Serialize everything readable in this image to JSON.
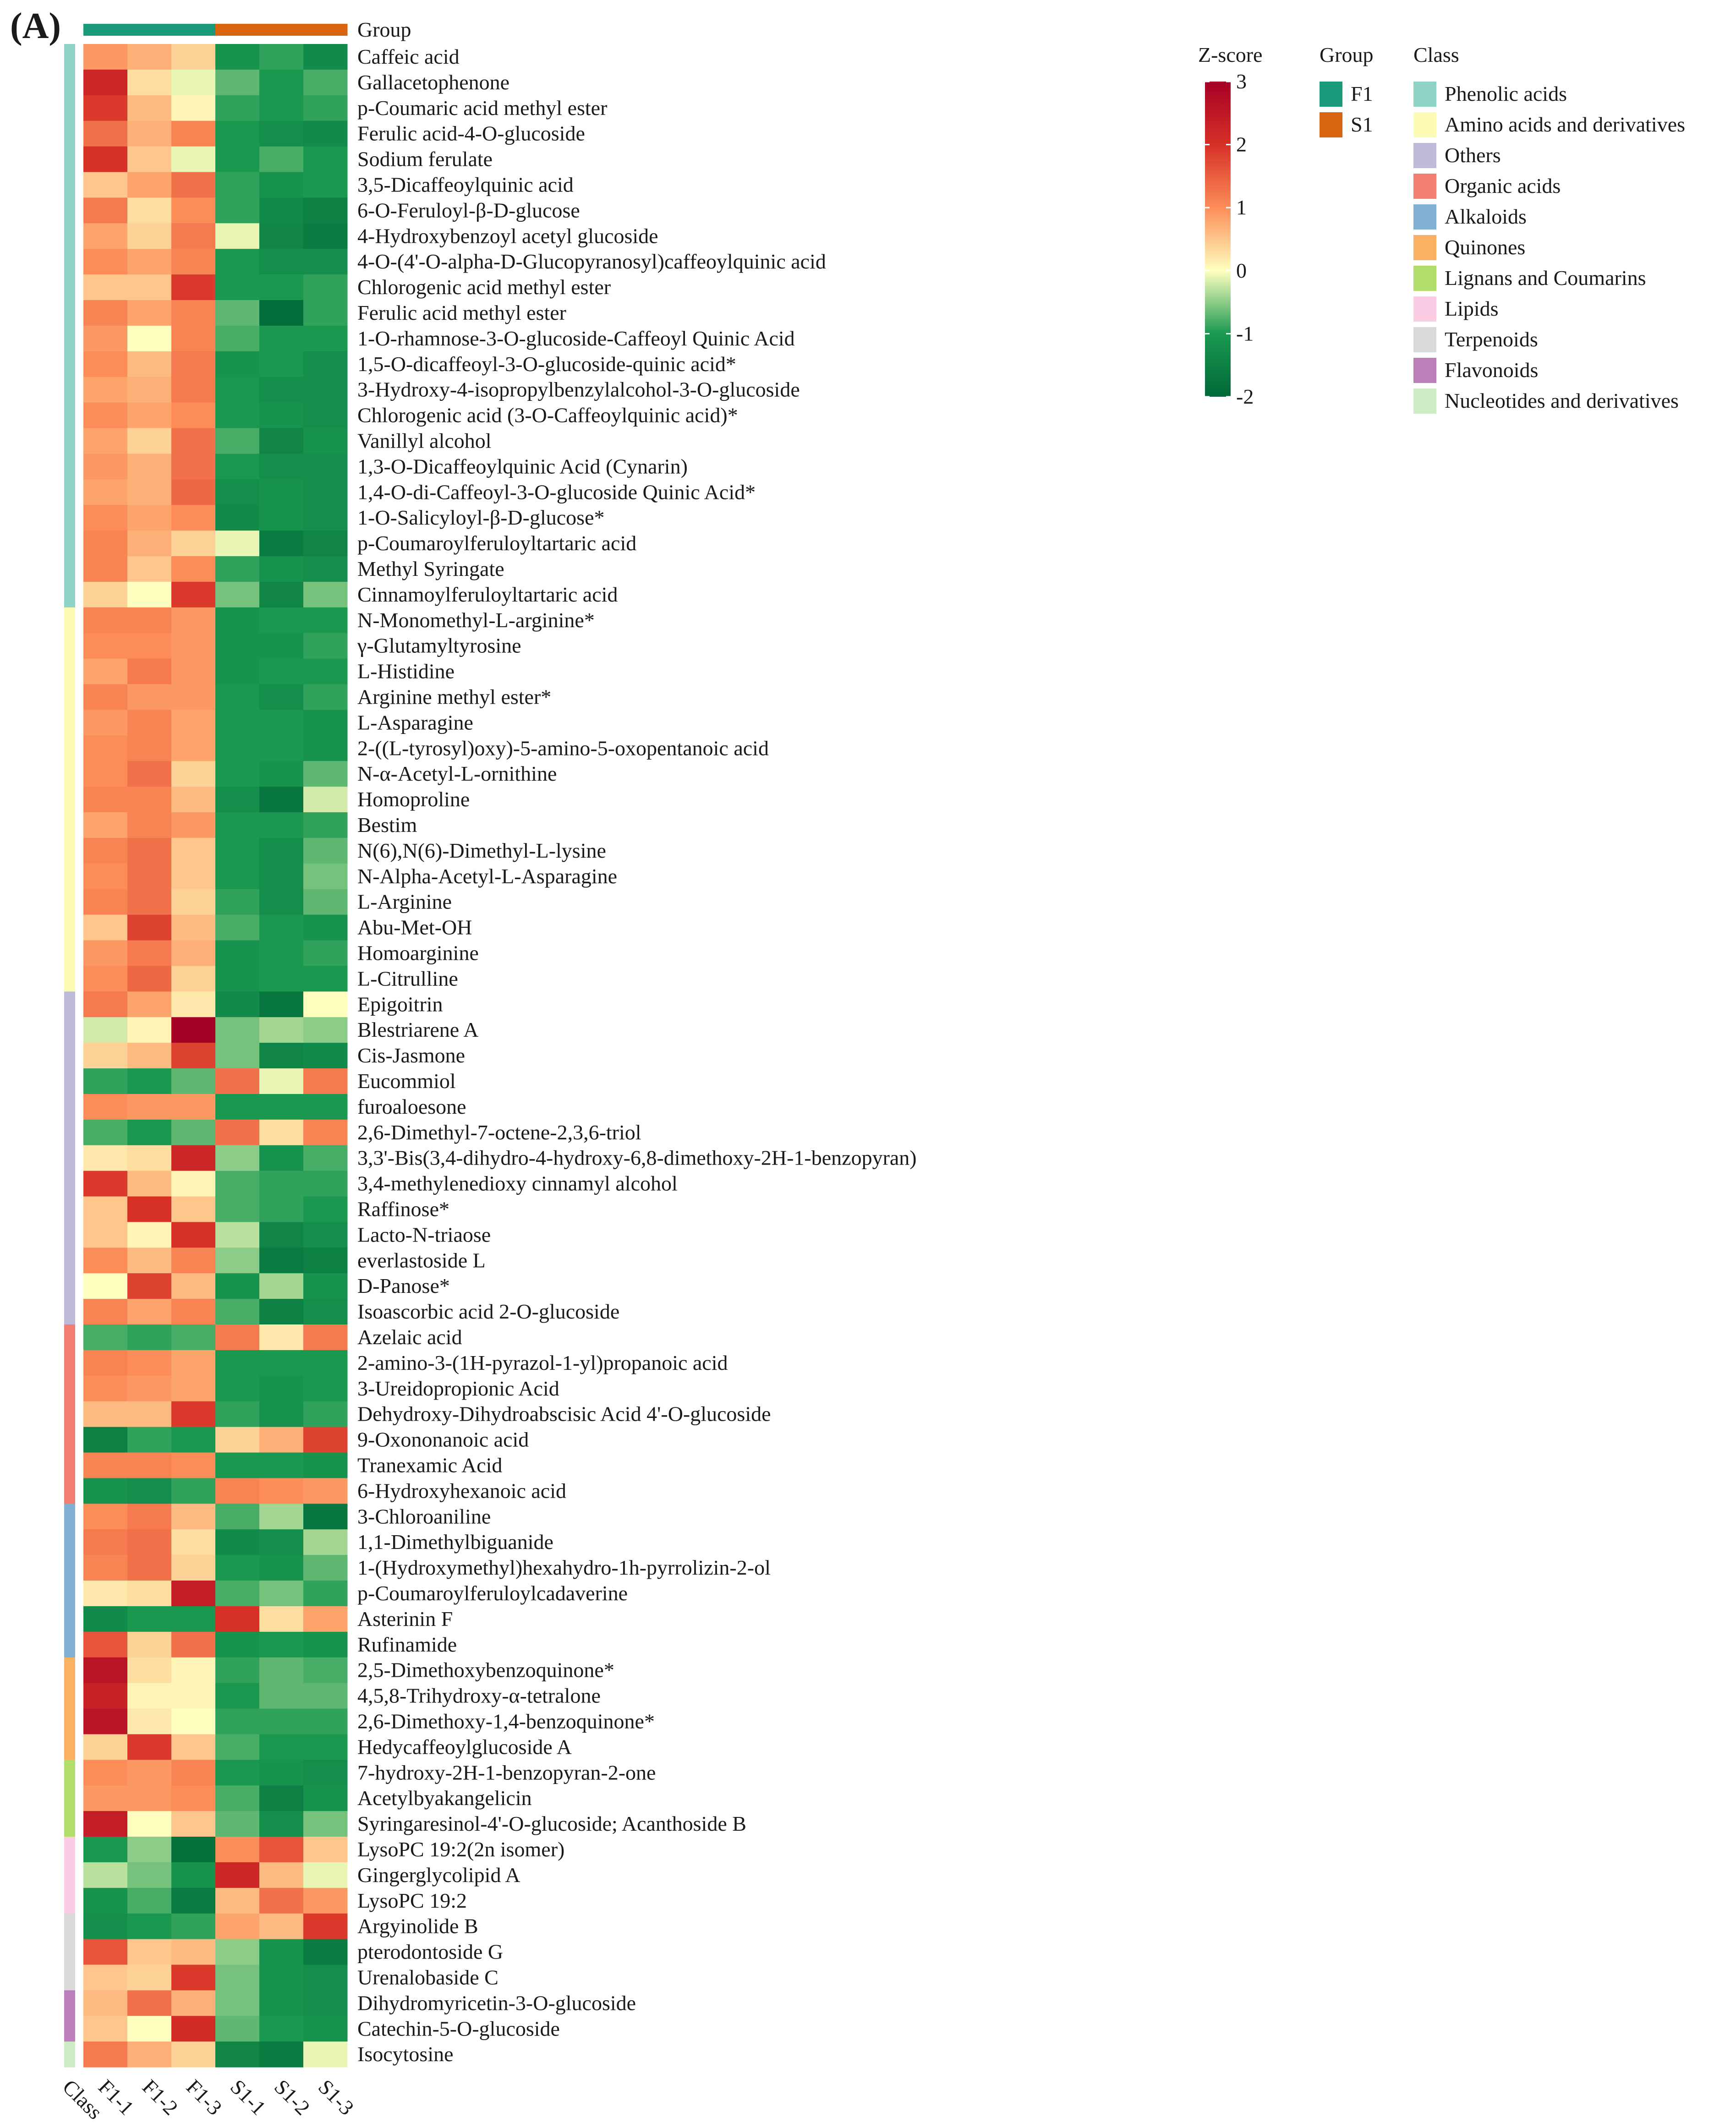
{
  "panel_label": "(A)",
  "colors": {
    "group": {
      "F1": "#1a9a7a",
      "S1": "#d9640f"
    },
    "class": {
      "Phenolic acids": "#8fd3c7",
      "Amino acids and derivatives": "#fbfbb3",
      "Others": "#bebad9",
      "Organic acids": "#f47f71",
      "Alkaloids": "#80b1d3",
      "Quinones": "#fbb163",
      "Lignans and Coumarins": "#b3dd6b",
      "Lipids": "#fbcce4",
      "Terpenoids": "#d9d9d9",
      "Flavonoids": "#bb7fbc",
      "Nucleotides and derivatives": "#cdebc5"
    }
  },
  "chart_data": {
    "type": "heatmap",
    "title": "",
    "samples": [
      "F1-1",
      "F1-2",
      "F1-3",
      "S1-1",
      "S1-2",
      "S1-3"
    ],
    "sample_groups": [
      "F1",
      "F1",
      "F1",
      "S1",
      "S1",
      "S1"
    ],
    "annotation_row_label": "Group",
    "annotation_col_label": "Class",
    "zscore_range": [
      -2,
      3
    ],
    "zscore_ticks": [
      3,
      2,
      1,
      0,
      -1,
      -2
    ],
    "rows": [
      {
        "name": "Caffeic acid",
        "class": "Phenolic acids",
        "values": [
          0.9,
          0.7,
          0.4,
          -1.1,
          -0.9,
          -1.3
        ]
      },
      {
        "name": "Gallacetophenone",
        "class": "Phenolic acids",
        "values": [
          2.2,
          0.3,
          -0.1,
          -0.7,
          -1.0,
          -0.8
        ]
      },
      {
        "name": "p-Coumaric acid methyl ester",
        "class": "Phenolic acids",
        "values": [
          1.9,
          0.6,
          0.1,
          -0.9,
          -1.0,
          -0.9
        ]
      },
      {
        "name": "Ferulic acid-4-O-glucoside",
        "class": "Phenolic acids",
        "values": [
          1.3,
          0.7,
          1.1,
          -1.0,
          -1.2,
          -1.3
        ]
      },
      {
        "name": "Sodium ferulate",
        "class": "Phenolic acids",
        "values": [
          2.0,
          0.5,
          -0.1,
          -1.0,
          -0.8,
          -1.0
        ]
      },
      {
        "name": "3,5-Dicaffeoylquinic acid",
        "class": "Phenolic acids",
        "values": [
          0.5,
          0.8,
          1.3,
          -0.9,
          -1.1,
          -1.0
        ]
      },
      {
        "name": "6-O-Feruloyl-β-D-glucose",
        "class": "Phenolic acids",
        "values": [
          1.2,
          0.3,
          1.0,
          -0.9,
          -1.3,
          -1.5
        ]
      },
      {
        "name": "4-Hydroxybenzoyl acetyl glucoside",
        "class": "Phenolic acids",
        "values": [
          0.8,
          0.4,
          1.2,
          -0.1,
          -1.4,
          -1.6
        ]
      },
      {
        "name": "4-O-(4'-O-alpha-D-Glucopyranosyl)caffeoylquinic acid",
        "class": "Phenolic acids",
        "values": [
          1.0,
          0.8,
          1.1,
          -1.0,
          -1.2,
          -1.2
        ]
      },
      {
        "name": "Chlorogenic acid methyl ester",
        "class": "Phenolic acids",
        "values": [
          0.5,
          0.5,
          1.9,
          -1.0,
          -1.0,
          -0.9
        ]
      },
      {
        "name": "Ferulic acid methyl ester",
        "class": "Phenolic acids",
        "values": [
          1.1,
          0.8,
          1.1,
          -0.7,
          -1.9,
          -0.9
        ]
      },
      {
        "name": "1-O-rhamnose-3-O-glucoside-Caffeoyl Quinic Acid",
        "class": "Phenolic acids",
        "values": [
          0.9,
          0.0,
          1.1,
          -0.8,
          -1.0,
          -1.0
        ]
      },
      {
        "name": "1,5-O-dicaffeoyl-3-O-glucoside-quinic acid*",
        "class": "Phenolic acids",
        "values": [
          1.0,
          0.6,
          1.2,
          -1.1,
          -1.0,
          -1.2
        ]
      },
      {
        "name": "3-Hydroxy-4-isopropylbenzylalcohol-3-O-glucoside",
        "class": "Phenolic acids",
        "values": [
          0.8,
          0.7,
          1.2,
          -1.0,
          -1.2,
          -1.2
        ]
      },
      {
        "name": "Chlorogenic acid (3-O-Caffeoylquinic acid)*",
        "class": "Phenolic acids",
        "values": [
          1.0,
          0.8,
          1.0,
          -1.0,
          -1.1,
          -1.2
        ]
      },
      {
        "name": "Vanillyl alcohol",
        "class": "Phenolic acids",
        "values": [
          0.8,
          0.4,
          1.3,
          -0.8,
          -1.4,
          -1.1
        ]
      },
      {
        "name": "1,3-O-Dicaffeoylquinic Acid (Cynarin)",
        "class": "Phenolic acids",
        "values": [
          0.9,
          0.7,
          1.3,
          -1.0,
          -1.2,
          -1.2
        ]
      },
      {
        "name": "1,4-O-di-Caffeoyl-3-O-glucoside Quinic Acid*",
        "class": "Phenolic acids",
        "values": [
          0.8,
          0.7,
          1.4,
          -1.2,
          -1.1,
          -1.2
        ]
      },
      {
        "name": "1-O-Salicyloyl-β-D-glucose*",
        "class": "Phenolic acids",
        "values": [
          1.0,
          0.8,
          1.0,
          -1.3,
          -1.1,
          -1.2
        ]
      },
      {
        "name": "p-Coumaroylferuloyltartaric acid",
        "class": "Phenolic acids",
        "values": [
          1.1,
          0.7,
          0.4,
          -0.1,
          -1.6,
          -1.4
        ]
      },
      {
        "name": "Methyl Syringate",
        "class": "Phenolic acids",
        "values": [
          1.1,
          0.5,
          1.0,
          -0.9,
          -1.1,
          -1.2
        ]
      },
      {
        "name": "Cinnamoylferuloyltartaric acid",
        "class": "Phenolic acids",
        "values": [
          0.4,
          0.0,
          1.9,
          -0.6,
          -1.4,
          -0.6
        ]
      },
      {
        "name": "N-Monomethyl-L-arginine*",
        "class": "Amino acids and derivatives",
        "values": [
          1.1,
          1.1,
          0.9,
          -1.1,
          -1.0,
          -1.0
        ]
      },
      {
        "name": "γ-Glutamyltyrosine",
        "class": "Amino acids and derivatives",
        "values": [
          1.0,
          1.0,
          0.9,
          -1.1,
          -1.1,
          -0.9
        ]
      },
      {
        "name": "L-Histidine",
        "class": "Amino acids and derivatives",
        "values": [
          0.8,
          1.2,
          0.9,
          -1.1,
          -1.0,
          -1.0
        ]
      },
      {
        "name": "Arginine methyl ester*",
        "class": "Amino acids and derivatives",
        "values": [
          1.1,
          0.9,
          0.9,
          -1.0,
          -1.2,
          -0.9
        ]
      },
      {
        "name": "L-Asparagine",
        "class": "Amino acids and derivatives",
        "values": [
          0.9,
          1.1,
          0.8,
          -1.0,
          -1.0,
          -1.1
        ]
      },
      {
        "name": "2-((L-tyrosyl)oxy)-5-amino-5-oxopentanoic acid",
        "class": "Amino acids and derivatives",
        "values": [
          1.0,
          1.1,
          0.8,
          -1.0,
          -1.0,
          -1.1
        ]
      },
      {
        "name": "N-α-Acetyl-L-ornithine",
        "class": "Amino acids and derivatives",
        "values": [
          1.0,
          1.3,
          0.4,
          -1.0,
          -1.1,
          -0.7
        ]
      },
      {
        "name": "Homoproline",
        "class": "Amino acids and derivatives",
        "values": [
          1.1,
          1.1,
          0.6,
          -1.2,
          -1.7,
          -0.2
        ]
      },
      {
        "name": "Bestim",
        "class": "Amino acids and derivatives",
        "values": [
          0.8,
          1.1,
          0.9,
          -1.0,
          -1.0,
          -0.9
        ]
      },
      {
        "name": "N(6),N(6)-Dimethyl-L-lysine",
        "class": "Amino acids and derivatives",
        "values": [
          1.1,
          1.3,
          0.5,
          -1.0,
          -1.2,
          -0.7
        ]
      },
      {
        "name": "N-Alpha-Acetyl-L-Asparagine",
        "class": "Amino acids and derivatives",
        "values": [
          1.0,
          1.3,
          0.5,
          -1.0,
          -1.2,
          -0.6
        ]
      },
      {
        "name": "L-Arginine",
        "class": "Amino acids and derivatives",
        "values": [
          1.1,
          1.3,
          0.4,
          -0.9,
          -1.2,
          -0.7
        ]
      },
      {
        "name": "Abu-Met-OH",
        "class": "Amino acids and derivatives",
        "values": [
          0.5,
          1.8,
          0.6,
          -0.8,
          -1.0,
          -1.1
        ]
      },
      {
        "name": "Homoarginine",
        "class": "Amino acids and derivatives",
        "values": [
          0.9,
          1.2,
          0.7,
          -1.1,
          -1.0,
          -0.9
        ]
      },
      {
        "name": "L-Citrulline",
        "class": "Amino acids and derivatives",
        "values": [
          1.0,
          1.4,
          0.4,
          -1.1,
          -1.0,
          -1.0
        ]
      },
      {
        "name": "Epigoitrin",
        "class": "Others",
        "values": [
          1.2,
          0.8,
          0.2,
          -1.3,
          -1.7,
          0.0
        ]
      },
      {
        "name": "Blestriarene A",
        "class": "Others",
        "values": [
          -0.2,
          0.1,
          3.0,
          -0.6,
          -0.4,
          -0.5
        ]
      },
      {
        "name": "Cis-Jasmone",
        "class": "Others",
        "values": [
          0.4,
          0.6,
          1.8,
          -0.6,
          -1.4,
          -1.3
        ]
      },
      {
        "name": "Eucommiol",
        "class": "Others",
        "values": [
          -0.9,
          -1.0,
          -0.7,
          1.3,
          -0.1,
          1.2
        ]
      },
      {
        "name": "furoaloesone",
        "class": "Others",
        "values": [
          1.0,
          0.9,
          0.9,
          -1.0,
          -1.0,
          -1.0
        ]
      },
      {
        "name": "2,6-Dimethyl-7-octene-2,3,6-triol",
        "class": "Others",
        "values": [
          -0.8,
          -1.0,
          -0.7,
          1.3,
          0.3,
          1.1
        ]
      },
      {
        "name": "3,3'-Bis(3,4-dihydro-4-hydroxy-6,8-dimethoxy-2H-1-benzopyran)",
        "class": "Others",
        "values": [
          0.2,
          0.3,
          2.2,
          -0.5,
          -1.1,
          -0.8
        ]
      },
      {
        "name": "3,4-methylenedioxy cinnamyl alcohol",
        "class": "Others",
        "values": [
          1.9,
          0.6,
          0.1,
          -0.8,
          -0.9,
          -0.9
        ]
      },
      {
        "name": "Raffinose*",
        "class": "Others",
        "values": [
          0.5,
          2.0,
          0.5,
          -0.8,
          -0.9,
          -1.0
        ]
      },
      {
        "name": "Lacto-N-triaose",
        "class": "Others",
        "values": [
          0.5,
          0.1,
          2.0,
          -0.3,
          -1.4,
          -1.2
        ]
      },
      {
        "name": "everlastoside L",
        "class": "Others",
        "values": [
          1.0,
          0.6,
          1.1,
          -0.5,
          -1.6,
          -1.5
        ]
      },
      {
        "name": "D-Panose*",
        "class": "Others",
        "values": [
          0.0,
          1.8,
          0.6,
          -1.1,
          -0.4,
          -1.1
        ]
      },
      {
        "name": "Isoascorbic acid 2-O-glucoside",
        "class": "Others",
        "values": [
          1.1,
          0.8,
          1.1,
          -0.8,
          -1.5,
          -1.2
        ]
      },
      {
        "name": "Azelaic acid",
        "class": "Organic acids",
        "values": [
          -0.8,
          -0.9,
          -0.8,
          1.2,
          0.2,
          1.2
        ]
      },
      {
        "name": "2-amino-3-(1H-pyrazol-1-yl)propanoic acid",
        "class": "Organic acids",
        "values": [
          1.1,
          1.0,
          0.8,
          -1.0,
          -1.0,
          -1.0
        ]
      },
      {
        "name": "3-Ureidopropionic Acid",
        "class": "Organic acids",
        "values": [
          1.0,
          0.9,
          0.8,
          -1.0,
          -1.1,
          -1.0
        ]
      },
      {
        "name": "Dehydroxy-Dihydroabscisic Acid 4'-O-glucoside",
        "class": "Organic acids",
        "values": [
          0.6,
          0.6,
          1.9,
          -0.9,
          -1.1,
          -0.9
        ]
      },
      {
        "name": "9-Oxononanoic acid",
        "class": "Organic acids",
        "values": [
          -1.5,
          -0.9,
          -1.0,
          0.4,
          0.7,
          1.8
        ]
      },
      {
        "name": "Tranexamic Acid",
        "class": "Organic acids",
        "values": [
          1.1,
          1.1,
          1.0,
          -1.0,
          -1.0,
          -1.1
        ]
      },
      {
        "name": "6-Hydroxyhexanoic acid",
        "class": "Organic acids",
        "values": [
          -1.1,
          -1.2,
          -0.9,
          1.1,
          1.0,
          0.9
        ]
      },
      {
        "name": "3-Chloroaniline",
        "class": "Alkaloids",
        "values": [
          1.0,
          1.2,
          0.6,
          -0.8,
          -0.4,
          -1.7
        ]
      },
      {
        "name": "1,1-Dimethylbiguanide",
        "class": "Alkaloids",
        "values": [
          1.2,
          1.3,
          0.3,
          -1.3,
          -1.2,
          -0.4
        ]
      },
      {
        "name": "1-(Hydroxymethyl)hexahydro-1h-pyrrolizin-2-ol",
        "class": "Alkaloids",
        "values": [
          1.1,
          1.3,
          0.4,
          -1.0,
          -1.1,
          -0.7
        ]
      },
      {
        "name": "p-Coumaroylferuloylcadaverine",
        "class": "Alkaloids",
        "values": [
          0.2,
          0.3,
          2.4,
          -0.8,
          -0.6,
          -0.9
        ]
      },
      {
        "name": "Asterinin F",
        "class": "Alkaloids",
        "values": [
          -1.3,
          -1.0,
          -1.0,
          2.0,
          0.3,
          0.8
        ]
      },
      {
        "name": "Rufinamide",
        "class": "Alkaloids",
        "values": [
          1.6,
          0.4,
          1.3,
          -1.1,
          -1.0,
          -1.1
        ]
      },
      {
        "name": "2,5-Dimethoxybenzoquinone*",
        "class": "Quinones",
        "values": [
          2.6,
          0.3,
          0.1,
          -0.9,
          -0.7,
          -0.8
        ]
      },
      {
        "name": "4,5,8-Trihydroxy-α-tetralone",
        "class": "Quinones",
        "values": [
          2.3,
          0.1,
          0.1,
          -1.0,
          -0.7,
          -0.7
        ]
      },
      {
        "name": "2,6-Dimethoxy-1,4-benzoquinone*",
        "class": "Quinones",
        "values": [
          2.6,
          0.2,
          0.0,
          -0.9,
          -0.9,
          -0.9
        ]
      },
      {
        "name": "Hedycaffeoylglucoside A",
        "class": "Quinones",
        "values": [
          0.4,
          1.9,
          0.5,
          -0.8,
          -1.0,
          -1.0
        ]
      },
      {
        "name": "7-hydroxy-2H-1-benzopyran-2-one",
        "class": "Lignans and Coumarins",
        "values": [
          1.0,
          0.9,
          1.1,
          -1.0,
          -1.1,
          -1.2
        ]
      },
      {
        "name": "Acetylbyakangelicin",
        "class": "Lignans and Coumarins",
        "values": [
          0.9,
          0.9,
          1.0,
          -0.8,
          -1.5,
          -1.1
        ]
      },
      {
        "name": "Syringaresinol-4'-O-glucoside; Acanthoside B",
        "class": "Lignans and Coumarins",
        "values": [
          2.4,
          0.0,
          0.5,
          -0.7,
          -1.2,
          -0.6
        ]
      },
      {
        "name": "LysoPC 19:2(2n isomer)",
        "class": "Lipids",
        "values": [
          -1.0,
          -0.5,
          -1.8,
          1.0,
          1.6,
          0.5
        ]
      },
      {
        "name": "Gingerglycolipid A",
        "class": "Lipids",
        "values": [
          -0.3,
          -0.6,
          -1.1,
          2.2,
          0.6,
          -0.1
        ]
      },
      {
        "name": "LysoPC 19:2",
        "class": "Lipids",
        "values": [
          -1.1,
          -0.8,
          -1.6,
          0.6,
          1.3,
          0.9
        ]
      },
      {
        "name": "Argyinolide B",
        "class": "Terpenoids",
        "values": [
          -1.2,
          -1.0,
          -0.9,
          0.8,
          0.6,
          1.9
        ]
      },
      {
        "name": "pterodontoside G",
        "class": "Terpenoids",
        "values": [
          1.6,
          0.5,
          0.6,
          -0.5,
          -1.1,
          -1.6
        ]
      },
      {
        "name": "Urenalobaside C",
        "class": "Terpenoids",
        "values": [
          0.5,
          0.4,
          1.9,
          -0.6,
          -1.1,
          -1.2
        ]
      },
      {
        "name": "Dihydromyricetin-3-O-glucoside",
        "class": "Flavonoids",
        "values": [
          0.6,
          1.3,
          0.7,
          -0.6,
          -1.1,
          -1.2
        ]
      },
      {
        "name": "Catechin-5-O-glucoside",
        "class": "Flavonoids",
        "values": [
          0.5,
          0.0,
          2.1,
          -0.7,
          -1.0,
          -1.1
        ]
      },
      {
        "name": "Isocytosine",
        "class": "Nucleotides and derivatives",
        "values": [
          1.2,
          0.7,
          0.4,
          -1.4,
          -1.6,
          -0.1
        ]
      }
    ]
  },
  "legend": {
    "zscore_title": "Z-score",
    "group_title": "Group",
    "class_title": "Class",
    "group_items": [
      "F1",
      "S1"
    ],
    "class_items": [
      "Phenolic acids",
      "Amino acids and derivatives",
      "Others",
      "Organic acids",
      "Alkaloids",
      "Quinones",
      "Lignans and Coumarins",
      "Lipids",
      "Terpenoids",
      "Flavonoids",
      "Nucleotides and derivatives"
    ]
  }
}
